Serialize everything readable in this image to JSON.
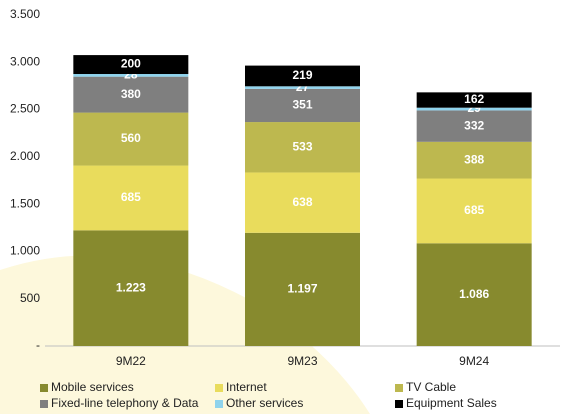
{
  "chart_data": {
    "type": "bar",
    "stacked": true,
    "categories": [
      "9M22",
      "9M23",
      "9M24"
    ],
    "series": [
      {
        "name": "Mobile services",
        "color": "#878a2e",
        "values": [
          1223,
          1197,
          1086
        ],
        "value_labels": [
          "1.223",
          "1.197",
          "1.086"
        ]
      },
      {
        "name": "Internet",
        "color": "#e9dc5c",
        "values": [
          685,
          638,
          685
        ]
      },
      {
        "name": "TV Cable",
        "color": "#bdb84f",
        "values": [
          560,
          533,
          388
        ]
      },
      {
        "name": "Fixed-line telephony & Data",
        "color": "#7f7f7f",
        "values": [
          380,
          351,
          332
        ]
      },
      {
        "name": "Other services",
        "color": "#8fd3ec",
        "values": [
          28,
          27,
          29
        ]
      },
      {
        "name": "Equipment Sales",
        "color": "#000000",
        "values": [
          200,
          219,
          162
        ]
      }
    ],
    "ylim": [
      0,
      3500
    ],
    "yticks": [
      {
        "value": 0,
        "label": "-"
      },
      500,
      {
        "value": 1000,
        "label": "1.000"
      },
      {
        "value": 1500,
        "label": "1.500"
      },
      {
        "value": 2000,
        "label": "2.000"
      },
      {
        "value": 2500,
        "label": "2.500"
      },
      {
        "value": 3000,
        "label": "3.000"
      },
      {
        "value": 3500,
        "label": "3.500"
      }
    ],
    "legend": "bottom"
  }
}
